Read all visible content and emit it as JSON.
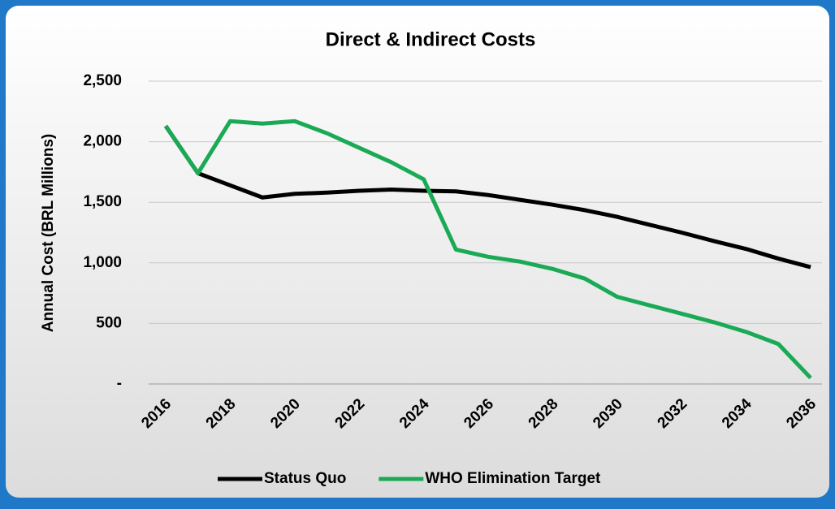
{
  "chart_data": {
    "type": "line",
    "title": "Direct & Indirect Costs",
    "y_label": "Annual Cost (BRL Millions)",
    "categories": [
      "2016",
      null,
      "2018",
      null,
      "2020",
      null,
      "2022",
      null,
      "2024",
      null,
      "2026",
      null,
      "2028",
      null,
      "2030",
      null,
      "2032",
      null,
      "2034",
      null,
      "2036"
    ],
    "series": [
      {
        "name": "Status Quo",
        "color": "#000000",
        "values": [
          2130,
          1740,
          1640,
          1540,
          1570,
          1580,
          1595,
          1605,
          1595,
          1590,
          1560,
          1520,
          1480,
          1435,
          1380,
          1315,
          1250,
          1180,
          1115,
          1035,
          965
        ]
      },
      {
        "name": "WHO Elimination Target",
        "color": "#1aaa55",
        "values": [
          2130,
          1740,
          2170,
          2150,
          2170,
          2070,
          1950,
          1830,
          1690,
          1110,
          1050,
          1010,
          950,
          870,
          720,
          650,
          580,
          510,
          430,
          330,
          50
        ]
      }
    ],
    "ylim": [
      0,
      2500
    ],
    "yticks": [
      {
        "value": 0,
        "label": "-"
      },
      500,
      {
        "value": 1000,
        "label": "1,000"
      },
      {
        "value": 1500,
        "label": "1,500"
      },
      {
        "value": 2000,
        "label": "2,000"
      },
      {
        "value": 2500,
        "label": "2,500"
      }
    ],
    "grid": true,
    "legend": "bottom"
  }
}
